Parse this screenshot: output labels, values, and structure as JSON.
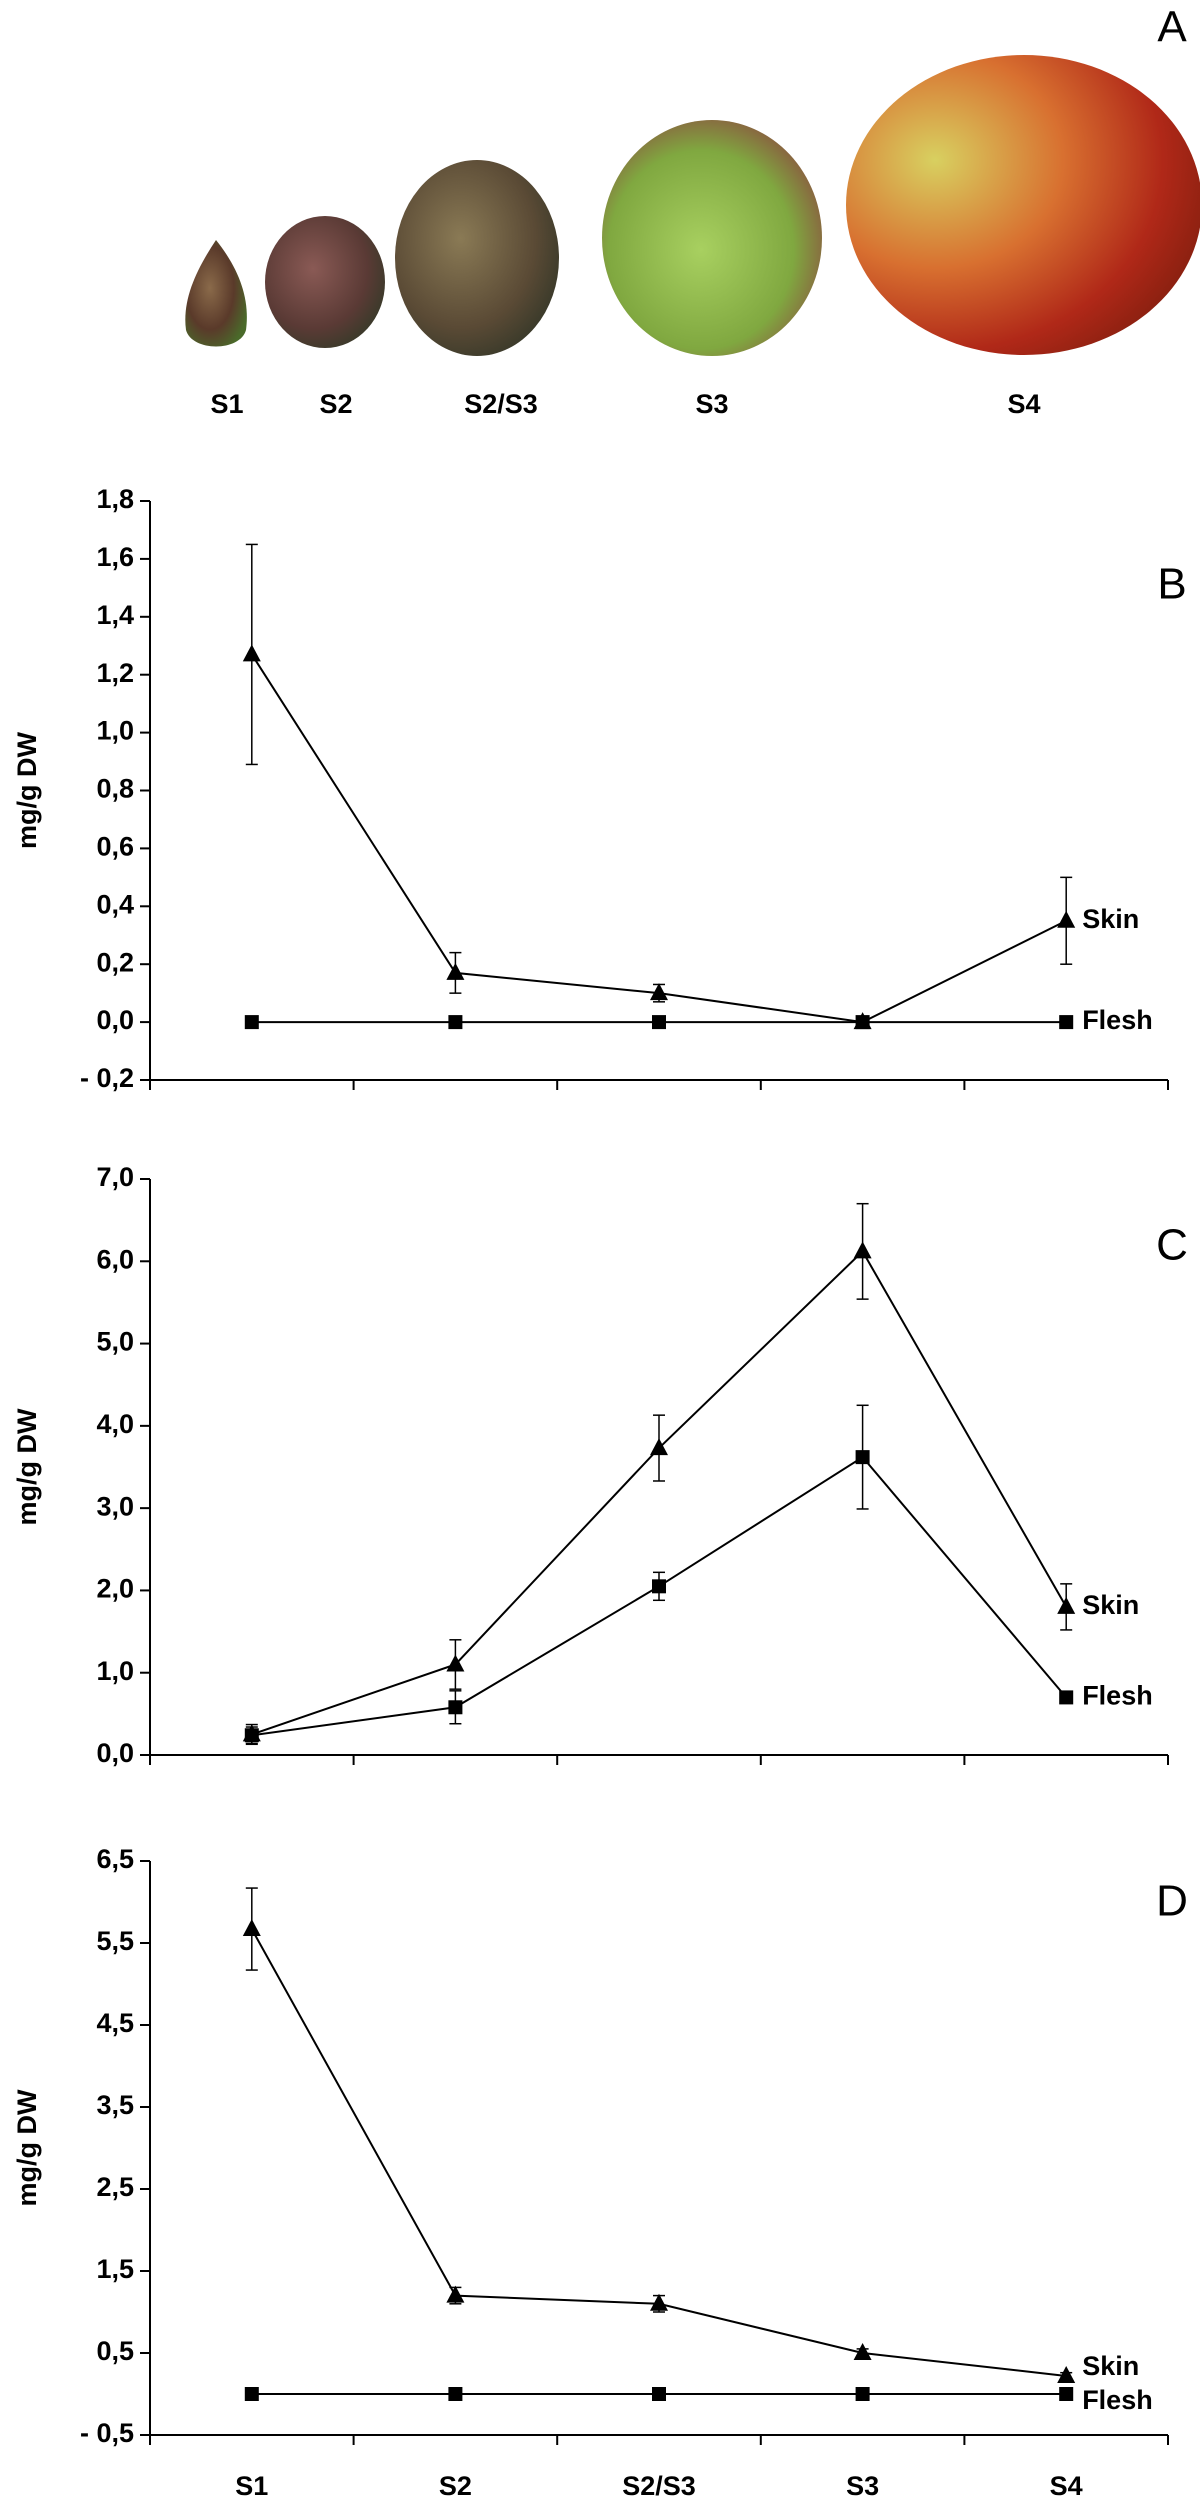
{
  "panel_a": {
    "annotation": "A",
    "labels": [
      "S1",
      "S2",
      "S2/S3",
      "S3",
      "S4"
    ]
  },
  "chart_data": [
    {
      "type": "line",
      "annotation": "B",
      "y_label": "mg/g DW",
      "categories": [
        null,
        null,
        null,
        null,
        null
      ],
      "series": [
        {
          "name": "Skin",
          "color": "#000000",
          "marker": "triangle",
          "values": [
            1.27,
            0.17,
            0.1,
            0.0,
            0.35
          ],
          "errors": [
            0.38,
            0.07,
            0.03,
            0.01,
            0.15
          ]
        },
        {
          "name": "Flesh",
          "color": "#000000",
          "marker": "square",
          "values": [
            0,
            0,
            0,
            0,
            0
          ]
        }
      ],
      "ylim": [
        -0.2,
        1.8
      ],
      "yticks": [
        {
          "value": -0.2,
          "label": "- 0,2"
        },
        {
          "value": 0,
          "label": "0,0"
        },
        {
          "value": 0.2,
          "label": "0,2"
        },
        {
          "value": 0.4,
          "label": "0,4"
        },
        {
          "value": 0.6,
          "label": "0,6"
        },
        {
          "value": 0.8,
          "label": "0,8"
        },
        {
          "value": 1.0,
          "label": "1,0"
        },
        {
          "value": 1.2,
          "label": "1,2"
        },
        {
          "value": 1.4,
          "label": "1,4"
        },
        {
          "value": 1.6,
          "label": "1,6"
        },
        {
          "value": 1.8,
          "label": "1,8"
        }
      ]
    },
    {
      "type": "line",
      "annotation": "C",
      "y_label": "mg/g DW",
      "categories": [
        null,
        null,
        null,
        null,
        null
      ],
      "series": [
        {
          "name": "Skin",
          "color": "#000000",
          "marker": "triangle",
          "values": [
            0.25,
            1.1,
            3.73,
            6.12,
            1.8
          ],
          "errors": [
            0.12,
            0.3,
            0.4,
            0.58,
            0.28
          ]
        },
        {
          "name": "Flesh",
          "color": "#000000",
          "marker": "square",
          "values": [
            0.24,
            0.58,
            2.05,
            3.62,
            0.7
          ],
          "errors": [
            0.1,
            0.2,
            0.17,
            0.63,
            0.03
          ]
        }
      ],
      "ylim": [
        0,
        7
      ],
      "yticks": [
        {
          "value": 0,
          "label": "0,0"
        },
        {
          "value": 1,
          "label": "1,0"
        },
        {
          "value": 2,
          "label": "2,0"
        },
        {
          "value": 3,
          "label": "3,0"
        },
        {
          "value": 4,
          "label": "4,0"
        },
        {
          "value": 5,
          "label": "5,0"
        },
        {
          "value": 6,
          "label": "6,0"
        },
        {
          "value": 7,
          "label": "7,0"
        }
      ]
    },
    {
      "type": "line",
      "annotation": "D",
      "y_label": "mg/g DW",
      "categories": [
        "S1",
        "S2",
        "S2/S3",
        "S3",
        "S4"
      ],
      "series": [
        {
          "name": "Skin",
          "color": "#000000",
          "marker": "triangle",
          "values": [
            5.67,
            1.2,
            1.1,
            0.5,
            0.22
          ],
          "errors": [
            0.5,
            0.1,
            0.1,
            0.05,
            0.04
          ]
        },
        {
          "name": "Flesh",
          "color": "#000000",
          "marker": "square",
          "values": [
            0,
            0,
            0,
            0,
            0
          ]
        }
      ],
      "ylim": [
        -0.5,
        6.5
      ],
      "yticks": [
        {
          "value": -0.5,
          "label": "- 0,5"
        },
        {
          "value": 0.5,
          "label": "0,5"
        },
        {
          "value": 1.5,
          "label": "1,5"
        },
        {
          "value": 2.5,
          "label": "2,5"
        },
        {
          "value": 3.5,
          "label": "3,5"
        },
        {
          "value": 4.5,
          "label": "4,5"
        },
        {
          "value": 5.5,
          "label": "5,5"
        },
        {
          "value": 6.5,
          "label": "6,5"
        }
      ]
    }
  ]
}
